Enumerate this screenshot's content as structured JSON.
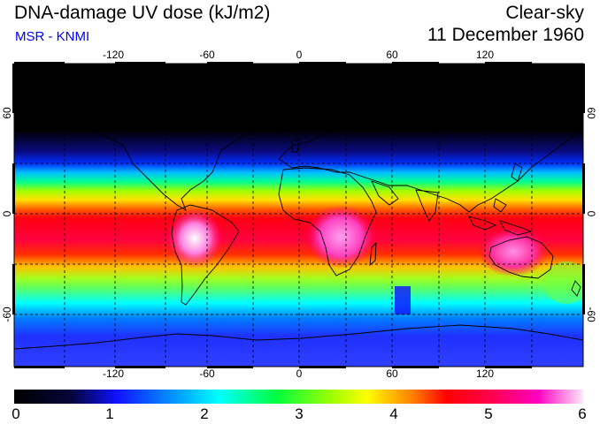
{
  "header": {
    "title": "DNA-damage UV dose (kJ/m2)",
    "source": "MSR - KNMI",
    "sky_condition": "Clear-sky",
    "date": "11 December 1960"
  },
  "map": {
    "lon_labels": [
      "-120",
      "-60",
      "0",
      "60",
      "120"
    ],
    "lat_labels": [
      "60",
      "0",
      "-60"
    ],
    "lon_range": [
      -180,
      180
    ],
    "lat_range": [
      -90,
      90
    ]
  },
  "colorbar": {
    "min": 0,
    "max": 6,
    "labels": [
      "0",
      "1",
      "2",
      "3",
      "4",
      "5",
      "6"
    ],
    "colors": [
      "#000000",
      "#0a0a5a",
      "#0000ff",
      "#00a0ff",
      "#00ffff",
      "#00ff80",
      "#80ff00",
      "#ffff00",
      "#ff8000",
      "#ff0000",
      "#ff0060",
      "#ff00c0",
      "#ffffff"
    ]
  },
  "colors": {
    "title": "#000000",
    "source": "#0000ff",
    "coastline": "#000000",
    "grid": "#000000"
  }
}
